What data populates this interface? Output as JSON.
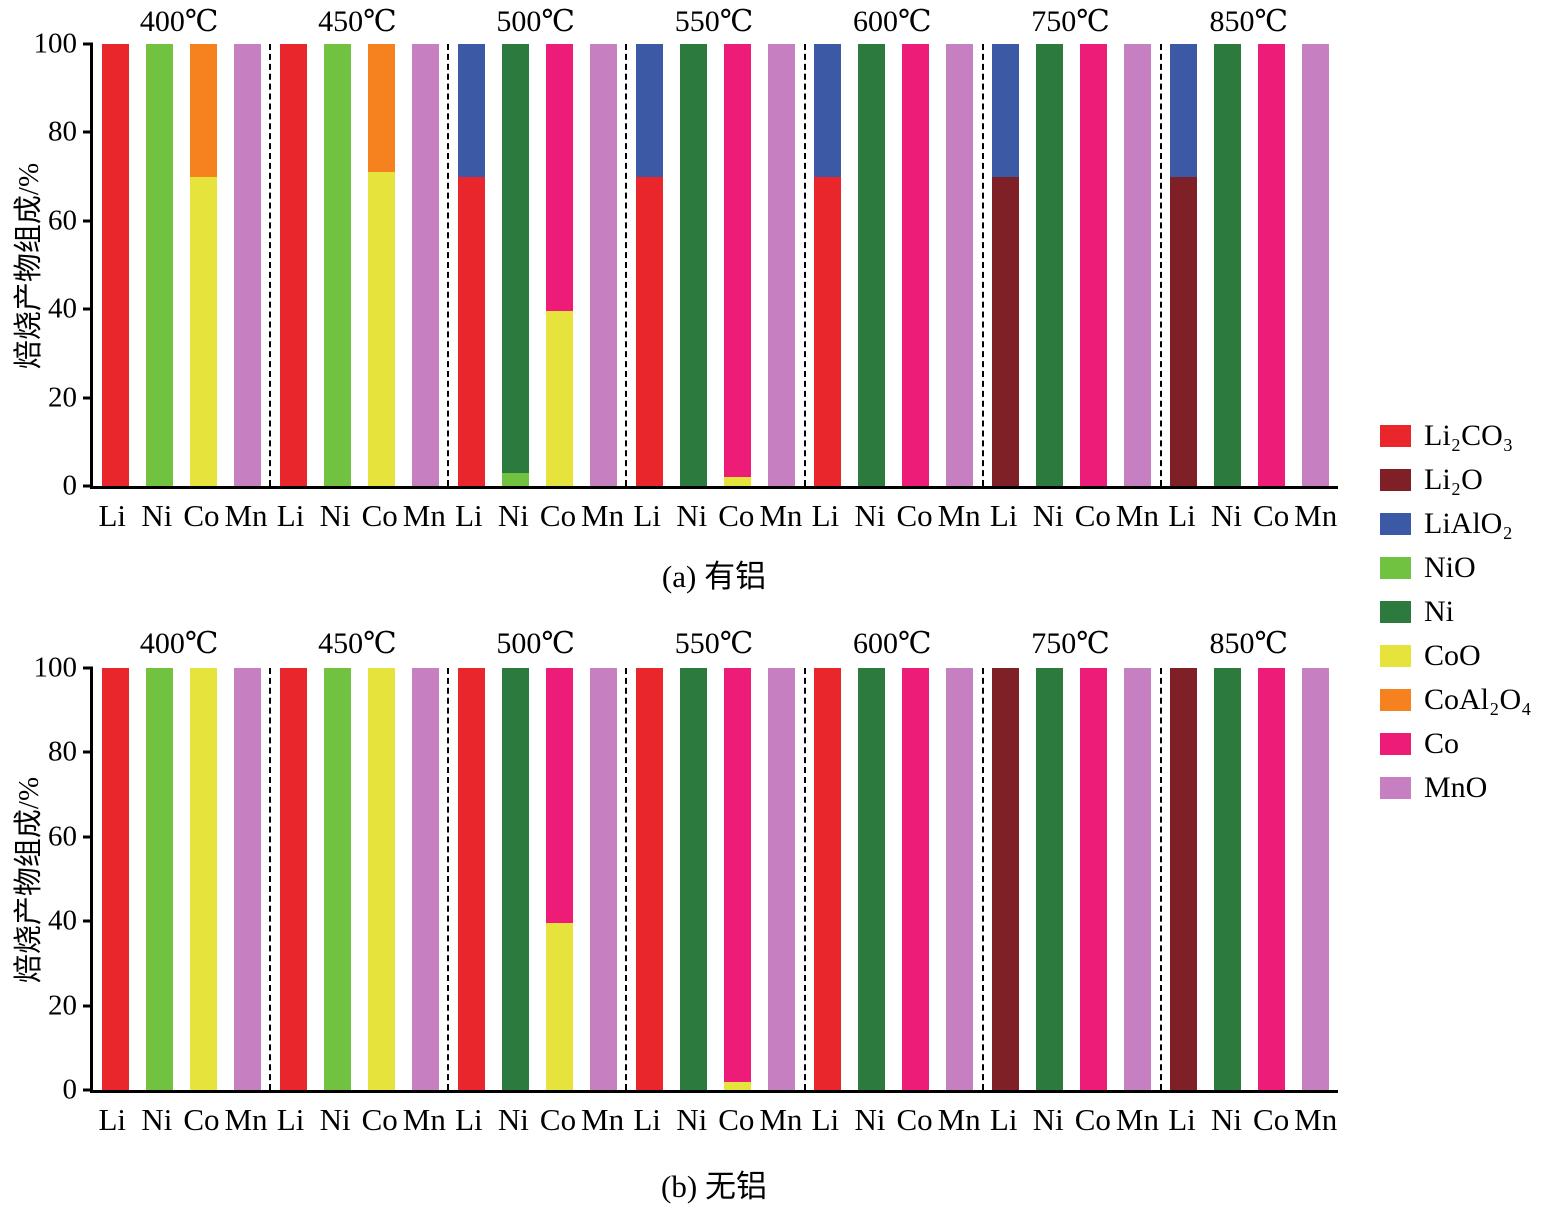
{
  "colors": {
    "Li₂CO₃": "#E9262B",
    "Li₂O": "#7E2025",
    "LiAlO₂": "#3C59A6",
    "NiO": "#71C241",
    "Ni": "#2D7A3E",
    "CoO": "#E5E33C",
    "CoAl₂O₄": "#F5821F",
    "Co": "#EC1C78",
    "MnO": "#C67FC1",
    "axis": "#000000"
  },
  "legend": {
    "position": "right",
    "items": [
      "Li₂CO₃",
      "Li₂O",
      "LiAlO₂",
      "NiO",
      "Ni",
      "CoO",
      "CoAl₂O₄",
      "Co",
      "MnO"
    ]
  },
  "chart_data": [
    {
      "type": "bar",
      "stacked": true,
      "title": "(a) 有铝",
      "ylabel": "焙烧产物组成/%",
      "xlabel": "",
      "ylim": [
        0,
        100
      ],
      "yticks": [
        0,
        20,
        40,
        60,
        80,
        100
      ],
      "grid": false,
      "elements": [
        "Li",
        "Ni",
        "Co",
        "Mn"
      ],
      "groups": [
        {
          "temperature": "400℃",
          "bars": [
            [
              [
                "Li₂CO₃",
                100
              ]
            ],
            [
              [
                "NiO",
                100
              ]
            ],
            [
              [
                "CoO",
                70
              ],
              [
                "CoAl₂O₄",
                30
              ]
            ],
            [
              [
                "MnO",
                100
              ]
            ]
          ]
        },
        {
          "temperature": "450℃",
          "bars": [
            [
              [
                "Li₂CO₃",
                100
              ]
            ],
            [
              [
                "NiO",
                100
              ]
            ],
            [
              [
                "CoO",
                71
              ],
              [
                "CoAl₂O₄",
                29
              ]
            ],
            [
              [
                "MnO",
                100
              ]
            ]
          ]
        },
        {
          "temperature": "500℃",
          "bars": [
            [
              [
                "Li₂CO₃",
                70
              ],
              [
                "LiAlO₂",
                30
              ]
            ],
            [
              [
                "NiO",
                3
              ],
              [
                "Ni",
                97
              ]
            ],
            [
              [
                "CoO",
                39.5
              ],
              [
                "Co",
                60.5
              ]
            ],
            [
              [
                "MnO",
                100
              ]
            ]
          ]
        },
        {
          "temperature": "550℃",
          "bars": [
            [
              [
                "Li₂CO₃",
                70
              ],
              [
                "LiAlO₂",
                30
              ]
            ],
            [
              [
                "Ni",
                100
              ]
            ],
            [
              [
                "CoO",
                2
              ],
              [
                "Co",
                98
              ]
            ],
            [
              [
                "MnO",
                100
              ]
            ]
          ]
        },
        {
          "temperature": "600℃",
          "bars": [
            [
              [
                "Li₂CO₃",
                70
              ],
              [
                "LiAlO₂",
                30
              ]
            ],
            [
              [
                "Ni",
                100
              ]
            ],
            [
              [
                "Co",
                100
              ]
            ],
            [
              [
                "MnO",
                100
              ]
            ]
          ]
        },
        {
          "temperature": "750℃",
          "bars": [
            [
              [
                "Li₂O",
                70
              ],
              [
                "LiAlO₂",
                30
              ]
            ],
            [
              [
                "Ni",
                100
              ]
            ],
            [
              [
                "Co",
                100
              ]
            ],
            [
              [
                "MnO",
                100
              ]
            ]
          ]
        },
        {
          "temperature": "850℃",
          "bars": [
            [
              [
                "Li₂O",
                70
              ],
              [
                "LiAlO₂",
                30
              ]
            ],
            [
              [
                "Ni",
                100
              ]
            ],
            [
              [
                "Co",
                100
              ]
            ],
            [
              [
                "MnO",
                100
              ]
            ]
          ]
        }
      ]
    },
    {
      "type": "bar",
      "stacked": true,
      "title": "(b) 无铝",
      "ylabel": "焙烧产物组成/%",
      "xlabel": "",
      "ylim": [
        0,
        100
      ],
      "yticks": [
        0,
        20,
        40,
        60,
        80,
        100
      ],
      "grid": false,
      "elements": [
        "Li",
        "Ni",
        "Co",
        "Mn"
      ],
      "groups": [
        {
          "temperature": "400℃",
          "bars": [
            [
              [
                "Li₂CO₃",
                100
              ]
            ],
            [
              [
                "NiO",
                100
              ]
            ],
            [
              [
                "CoO",
                100
              ]
            ],
            [
              [
                "MnO",
                100
              ]
            ]
          ]
        },
        {
          "temperature": "450℃",
          "bars": [
            [
              [
                "Li₂CO₃",
                100
              ]
            ],
            [
              [
                "NiO",
                100
              ]
            ],
            [
              [
                "CoO",
                100
              ]
            ],
            [
              [
                "MnO",
                100
              ]
            ]
          ]
        },
        {
          "temperature": "500℃",
          "bars": [
            [
              [
                "Li₂CO₃",
                100
              ]
            ],
            [
              [
                "Ni",
                100
              ]
            ],
            [
              [
                "CoO",
                39.5
              ],
              [
                "Co",
                60.5
              ]
            ],
            [
              [
                "MnO",
                100
              ]
            ]
          ]
        },
        {
          "temperature": "550℃",
          "bars": [
            [
              [
                "Li₂CO₃",
                100
              ]
            ],
            [
              [
                "Ni",
                100
              ]
            ],
            [
              [
                "CoO",
                2
              ],
              [
                "Co",
                98
              ]
            ],
            [
              [
                "MnO",
                100
              ]
            ]
          ]
        },
        {
          "temperature": "600℃",
          "bars": [
            [
              [
                "Li₂CO₃",
                100
              ]
            ],
            [
              [
                "Ni",
                100
              ]
            ],
            [
              [
                "Co",
                100
              ]
            ],
            [
              [
                "MnO",
                100
              ]
            ]
          ]
        },
        {
          "temperature": "750℃",
          "bars": [
            [
              [
                "Li₂O",
                100
              ]
            ],
            [
              [
                "Ni",
                100
              ]
            ],
            [
              [
                "Co",
                100
              ]
            ],
            [
              [
                "MnO",
                100
              ]
            ]
          ]
        },
        {
          "temperature": "850℃",
          "bars": [
            [
              [
                "Li₂O",
                100
              ]
            ],
            [
              [
                "Ni",
                100
              ]
            ],
            [
              [
                "Co",
                100
              ]
            ],
            [
              [
                "MnO",
                100
              ]
            ]
          ]
        }
      ]
    }
  ]
}
